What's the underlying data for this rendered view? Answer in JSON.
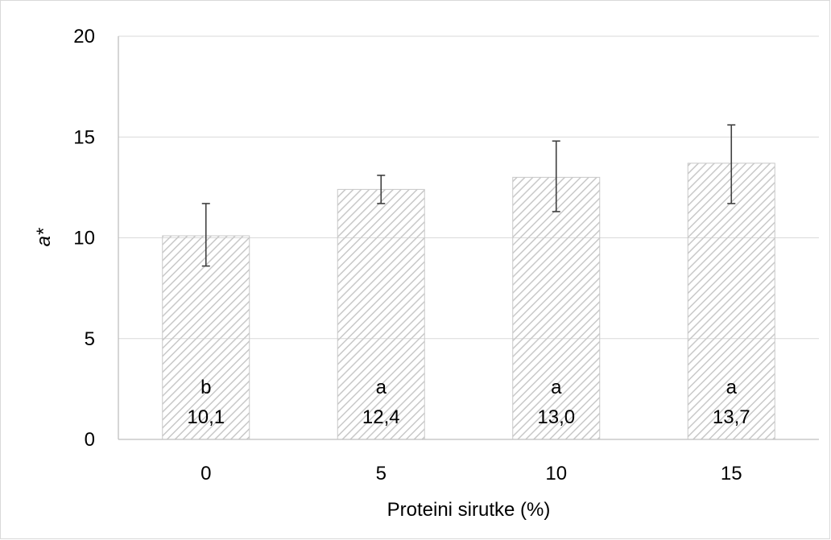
{
  "chart_data": {
    "type": "bar",
    "categories": [
      "0",
      "5",
      "10",
      "15"
    ],
    "values": [
      10.1,
      12.4,
      13.0,
      13.7
    ],
    "error_high": [
      11.7,
      13.1,
      14.8,
      15.6
    ],
    "error_low": [
      8.6,
      11.7,
      11.3,
      11.7
    ],
    "value_labels": [
      "10,1",
      "12,4",
      "13,0",
      "13,7"
    ],
    "significance_letters": [
      "b",
      "a",
      "a",
      "a"
    ],
    "y_ticks": [
      "0",
      "5",
      "10",
      "15",
      "20"
    ],
    "y_tick_values": [
      0,
      5,
      10,
      15,
      20
    ],
    "ylim": [
      0,
      20
    ],
    "xlabel": "Proteini sirutke (%)",
    "ylabel": "a*",
    "grid": true,
    "legend": "none",
    "bar_fill": "hatched",
    "colors": {
      "hatch": "#c8c8c8",
      "bar_border": "#c8c8c8",
      "grid": "#d9d9d9",
      "axis": "#bfbfbf",
      "error_bar": "#404040"
    }
  }
}
